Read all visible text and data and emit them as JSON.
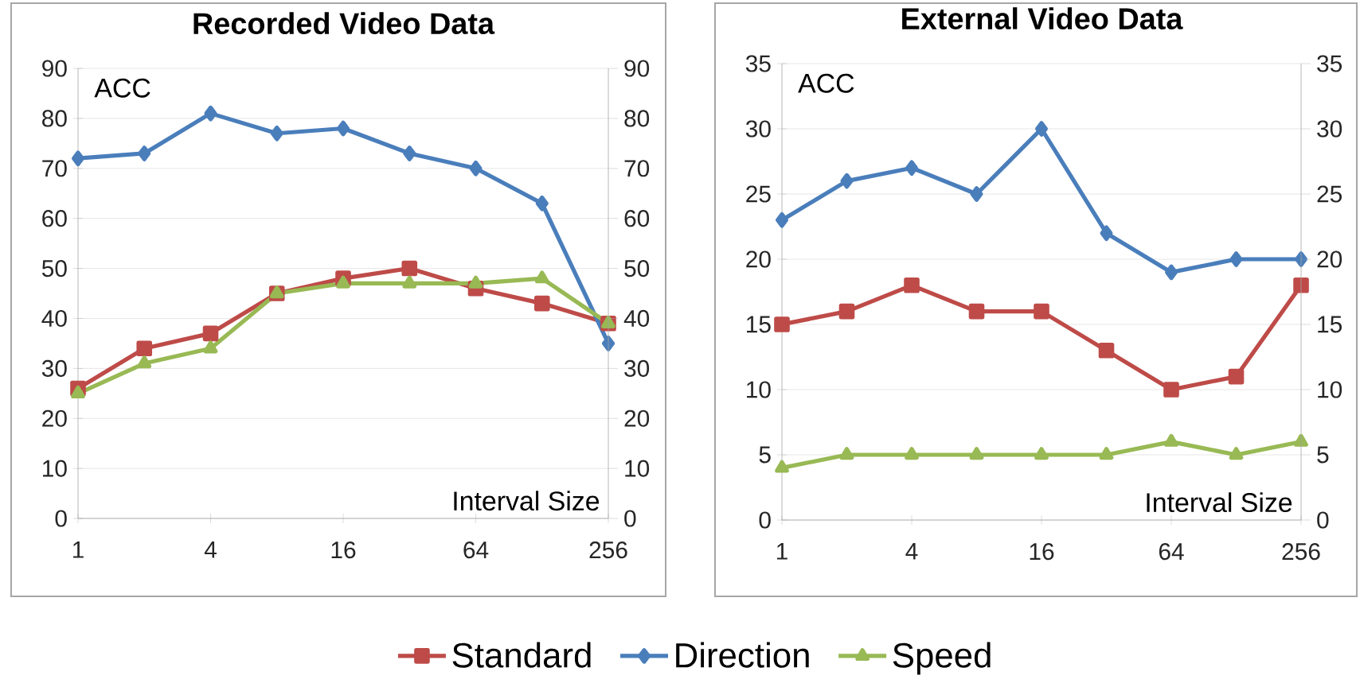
{
  "chart_data": [
    {
      "type": "line",
      "title": "Recorded Video Data",
      "ylabel": "ACC",
      "xlabel": "Interval Size",
      "log": "x",
      "x": [
        1,
        2,
        4,
        8,
        16,
        32,
        64,
        128,
        256
      ],
      "xlim": [
        1,
        256
      ],
      "xticks": [
        1,
        4,
        16,
        64,
        256
      ],
      "ylim": [
        0,
        90
      ],
      "yticks": [
        0,
        10,
        20,
        30,
        40,
        50,
        60,
        70,
        80,
        90
      ],
      "y2lim": [
        0,
        90
      ],
      "y2ticks": [
        0,
        10,
        20,
        30,
        40,
        50,
        60,
        70,
        80,
        90
      ],
      "grid": "y",
      "legend": "bottom",
      "series": [
        {
          "name": "Standard",
          "color": "#be4b48",
          "marker": "square",
          "values": [
            26,
            34,
            37,
            45,
            48,
            50,
            46,
            43,
            39
          ]
        },
        {
          "name": "Direction",
          "color": "#4a7ebb",
          "marker": "diamond",
          "values": [
            72,
            73,
            81,
            77,
            78,
            73,
            70,
            63,
            35
          ]
        },
        {
          "name": "Speed",
          "color": "#98b954",
          "marker": "triangle",
          "values": [
            25,
            31,
            34,
            45,
            47,
            47,
            47,
            48,
            39
          ]
        }
      ]
    },
    {
      "type": "line",
      "title": "External Video Data",
      "ylabel": "ACC",
      "xlabel": "Interval Size",
      "log": "x",
      "x": [
        1,
        2,
        4,
        8,
        16,
        32,
        64,
        128,
        256
      ],
      "xlim": [
        1,
        256
      ],
      "xticks": [
        1,
        4,
        16,
        64,
        256
      ],
      "ylim": [
        0,
        35
      ],
      "yticks": [
        0,
        5,
        10,
        15,
        20,
        25,
        30,
        35
      ],
      "y2lim": [
        0,
        35
      ],
      "y2ticks": [
        0,
        5,
        10,
        15,
        20,
        25,
        30,
        35
      ],
      "grid": "y",
      "series": [
        {
          "color": "#be4b48",
          "marker": "square",
          "values": [
            15,
            16,
            18,
            16,
            16,
            13,
            10,
            11,
            18
          ]
        },
        {
          "color": "#4a7ebb",
          "marker": "diamond",
          "values": [
            23,
            26,
            27,
            25,
            30,
            22,
            19,
            20,
            20
          ]
        },
        {
          "color": "#98b954",
          "marker": "triangle",
          "values": [
            4,
            5,
            5,
            5,
            5,
            5,
            6,
            5,
            6
          ]
        }
      ]
    }
  ]
}
